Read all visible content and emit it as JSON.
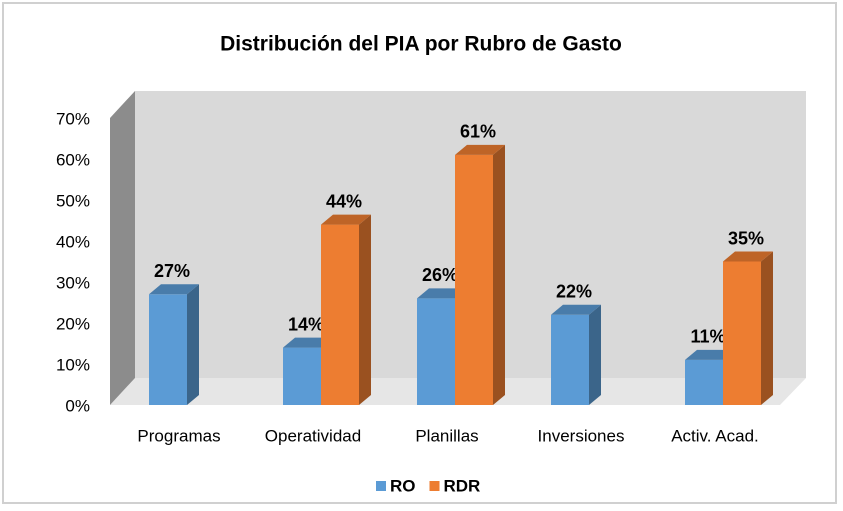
{
  "chart_data": {
    "type": "bar3d",
    "title": "Distribución del PIA por Rubro de Gasto",
    "categories": [
      "Programas",
      "Operatividad",
      "Planillas",
      "Inversiones",
      "Activ. Acad."
    ],
    "series": [
      {
        "name": "RO",
        "color": "#5b9bd5",
        "values": [
          27,
          14,
          26,
          22,
          11
        ],
        "value_labels": [
          "27%",
          "14%",
          "26%",
          "22%",
          "11%"
        ]
      },
      {
        "name": "RDR",
        "color": "#ed7d31",
        "values": [
          null,
          44,
          61,
          null,
          35
        ],
        "value_labels": [
          null,
          "44%",
          "61%",
          null,
          "35%"
        ]
      }
    ],
    "ylim": [
      0,
      70
    ],
    "yticks": [
      {
        "value": 0,
        "label": "0%"
      },
      {
        "value": 10,
        "label": "10%"
      },
      {
        "value": 20,
        "label": "20%"
      },
      {
        "value": 30,
        "label": "30%"
      },
      {
        "value": 40,
        "label": "40%"
      },
      {
        "value": 50,
        "label": "50%"
      },
      {
        "value": 60,
        "label": "60%"
      },
      {
        "value": 70,
        "label": "70%"
      }
    ],
    "legend": "bottom"
  }
}
